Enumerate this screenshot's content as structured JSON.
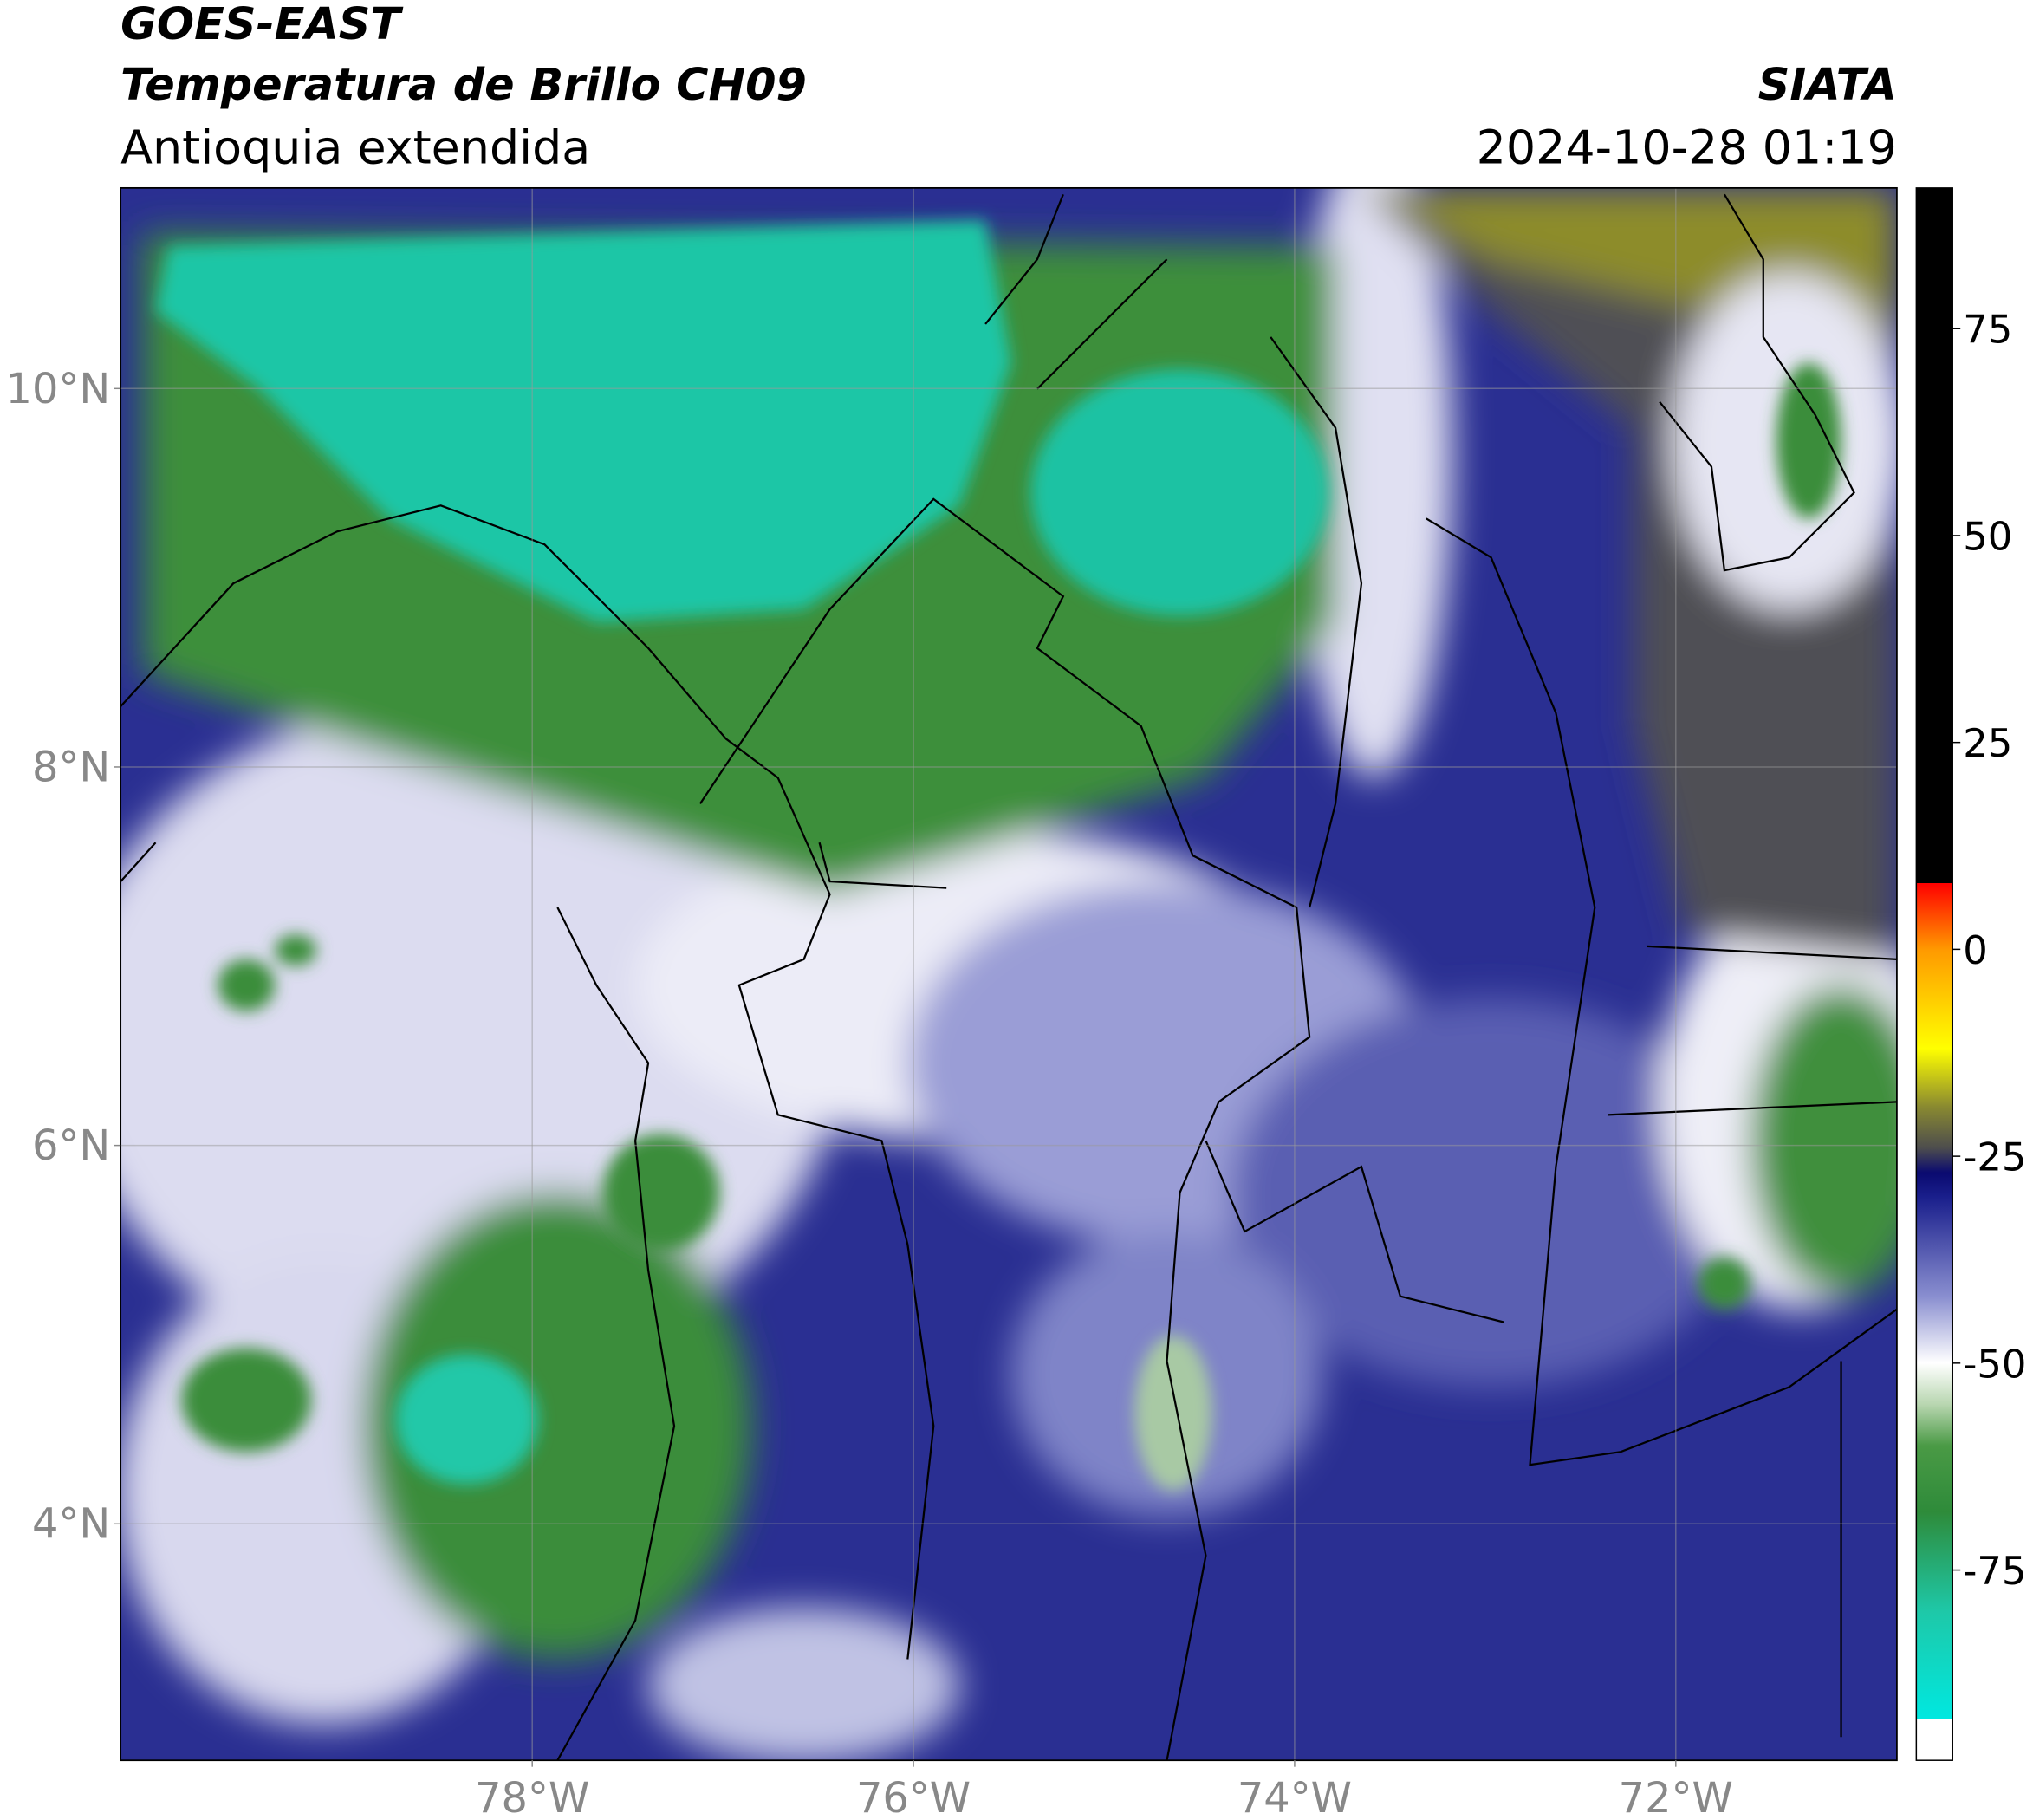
{
  "header": {
    "title": "GOES-EAST",
    "subtitle": "Temperatura de Brillo CH09",
    "region": "Antioquia extendida",
    "source": "SIATA",
    "datetime": "2024-10-28 01:19"
  },
  "map": {
    "xlim": [
      -80.16,
      -70.84
    ],
    "ylim": [
      2.75,
      11.06
    ],
    "xticks": [
      {
        "value": -78,
        "label": "78°W"
      },
      {
        "value": -76,
        "label": "76°W"
      },
      {
        "value": -74,
        "label": "74°W"
      },
      {
        "value": -72,
        "label": "72°W"
      }
    ],
    "yticks": [
      {
        "value": 4,
        "label": "4°N"
      },
      {
        "value": 6,
        "label": "6°N"
      },
      {
        "value": 8,
        "label": "8°N"
      },
      {
        "value": 10,
        "label": "10°N"
      }
    ],
    "grid": true
  },
  "colorbar": {
    "lim": [
      -98,
      92
    ],
    "ticks": [
      -75,
      -50,
      -25,
      0,
      25,
      50,
      75
    ],
    "stops": [
      {
        "value": -98,
        "color": "#ffffff"
      },
      {
        "value": -93,
        "color": "#ffffff"
      },
      {
        "value": -93,
        "color": "#00e8e0"
      },
      {
        "value": -80,
        "color": "#1ec8a8"
      },
      {
        "value": -68,
        "color": "#2e8b3a"
      },
      {
        "value": -60,
        "color": "#4a9a45"
      },
      {
        "value": -55,
        "color": "#b8d6b0"
      },
      {
        "value": -50,
        "color": "#ffffff"
      },
      {
        "value": -42,
        "color": "#8a8fd0"
      },
      {
        "value": -30,
        "color": "#1a1f8c"
      },
      {
        "value": -27,
        "color": "#0a0a70"
      },
      {
        "value": -24,
        "color": "#4d4d4d"
      },
      {
        "value": -19,
        "color": "#8a8a30"
      },
      {
        "value": -12,
        "color": "#ffff00"
      },
      {
        "value": 0,
        "color": "#ff9900"
      },
      {
        "value": 8,
        "color": "#ff0000"
      },
      {
        "value": 8,
        "color": "#000000"
      },
      {
        "value": 92,
        "color": "#000000"
      }
    ]
  }
}
